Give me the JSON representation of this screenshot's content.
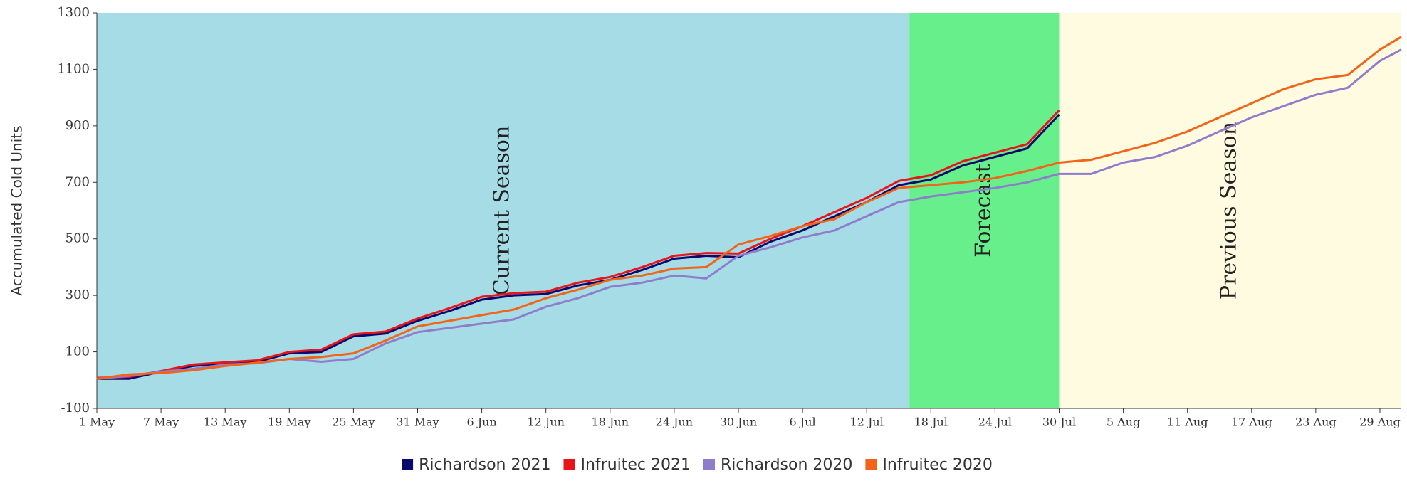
{
  "chart_data": {
    "type": "line",
    "ylabel": "Accumulated Cold Units",
    "xlim": [
      0,
      122
    ],
    "ylim": [
      -100,
      1300
    ],
    "yticks": [
      -100,
      100,
      300,
      500,
      700,
      900,
      1100,
      1300
    ],
    "xticks": [
      {
        "value": 0,
        "label": "1 May"
      },
      {
        "value": 6,
        "label": "7 May"
      },
      {
        "value": 12,
        "label": "13 May"
      },
      {
        "value": 18,
        "label": "19 May"
      },
      {
        "value": 24,
        "label": "25 May"
      },
      {
        "value": 30,
        "label": "31 May"
      },
      {
        "value": 36,
        "label": "6 Jun"
      },
      {
        "value": 42,
        "label": "12 Jun"
      },
      {
        "value": 48,
        "label": "18 Jun"
      },
      {
        "value": 54,
        "label": "24 Jun"
      },
      {
        "value": 60,
        "label": "30 Jun"
      },
      {
        "value": 66,
        "label": "6 Jul"
      },
      {
        "value": 72,
        "label": "12 Jul"
      },
      {
        "value": 78,
        "label": "18 Jul"
      },
      {
        "value": 84,
        "label": "24 Jul"
      },
      {
        "value": 90,
        "label": "30 Jul"
      },
      {
        "value": 96,
        "label": "5 Aug"
      },
      {
        "value": 102,
        "label": "11 Aug"
      },
      {
        "value": 108,
        "label": "17 Aug"
      },
      {
        "value": 114,
        "label": "23 Aug"
      },
      {
        "value": 120,
        "label": "29 Aug"
      }
    ],
    "bands": [
      {
        "label": "Current Season",
        "start": 0,
        "end": 76,
        "color": "#a6dce5"
      },
      {
        "label": "Forecast",
        "start": 76,
        "end": 90,
        "color": "#66ef8a"
      },
      {
        "label": "Previous Season",
        "start": 90,
        "end": 122,
        "color": "#fefbe0"
      }
    ],
    "series": [
      {
        "name": "Richardson 2021",
        "color": "#0a0a6e",
        "x": [
          0,
          3,
          6,
          9,
          12,
          15,
          18,
          21,
          24,
          27,
          30,
          33,
          36,
          39,
          42,
          45,
          48,
          51,
          54,
          57,
          60,
          63,
          66,
          69,
          72,
          75,
          78,
          81,
          84,
          87,
          90
        ],
        "values": [
          5,
          5,
          30,
          50,
          60,
          65,
          95,
          100,
          155,
          165,
          210,
          245,
          285,
          300,
          305,
          335,
          355,
          390,
          430,
          440,
          435,
          490,
          530,
          580,
          630,
          690,
          710,
          760,
          790,
          820,
          940
        ]
      },
      {
        "name": "Infruitec 2021",
        "color": "#e8141c",
        "x": [
          0,
          3,
          6,
          9,
          12,
          15,
          18,
          21,
          24,
          27,
          30,
          33,
          36,
          39,
          42,
          45,
          48,
          51,
          54,
          57,
          60,
          63,
          66,
          69,
          72,
          75,
          78,
          81,
          84,
          87,
          90
        ],
        "values": [
          8,
          12,
          32,
          55,
          63,
          70,
          100,
          108,
          162,
          172,
          218,
          255,
          295,
          308,
          313,
          345,
          365,
          400,
          440,
          450,
          448,
          500,
          545,
          595,
          645,
          705,
          725,
          775,
          805,
          835,
          955
        ]
      },
      {
        "name": "Richardson 2020",
        "color": "#8f7dcc",
        "x": [
          0,
          3,
          6,
          9,
          12,
          15,
          18,
          21,
          24,
          27,
          30,
          33,
          36,
          39,
          42,
          45,
          48,
          51,
          54,
          57,
          60,
          63,
          66,
          69,
          72,
          75,
          78,
          81,
          84,
          87,
          90,
          93,
          96,
          99,
          102,
          105,
          108,
          111,
          114,
          117,
          120,
          122
        ],
        "values": [
          5,
          15,
          30,
          40,
          55,
          60,
          75,
          65,
          75,
          130,
          170,
          185,
          200,
          215,
          260,
          290,
          330,
          345,
          370,
          360,
          440,
          470,
          505,
          530,
          580,
          630,
          650,
          665,
          680,
          700,
          730,
          730,
          770,
          790,
          830,
          880,
          930,
          970,
          1010,
          1035,
          1130,
          1170
        ]
      },
      {
        "name": "Infruitec 2020",
        "color": "#f26419",
        "x": [
          0,
          3,
          6,
          9,
          12,
          15,
          18,
          21,
          24,
          27,
          30,
          33,
          36,
          39,
          42,
          45,
          48,
          51,
          54,
          57,
          60,
          63,
          66,
          69,
          72,
          75,
          78,
          81,
          84,
          87,
          90,
          93,
          96,
          99,
          102,
          105,
          108,
          111,
          114,
          117,
          120,
          122
        ],
        "values": [
          5,
          20,
          25,
          35,
          50,
          62,
          75,
          82,
          95,
          140,
          190,
          210,
          230,
          250,
          290,
          320,
          355,
          370,
          395,
          400,
          480,
          510,
          545,
          570,
          630,
          680,
          690,
          700,
          715,
          740,
          770,
          780,
          810,
          840,
          880,
          930,
          980,
          1030,
          1065,
          1080,
          1170,
          1215
        ]
      }
    ]
  }
}
